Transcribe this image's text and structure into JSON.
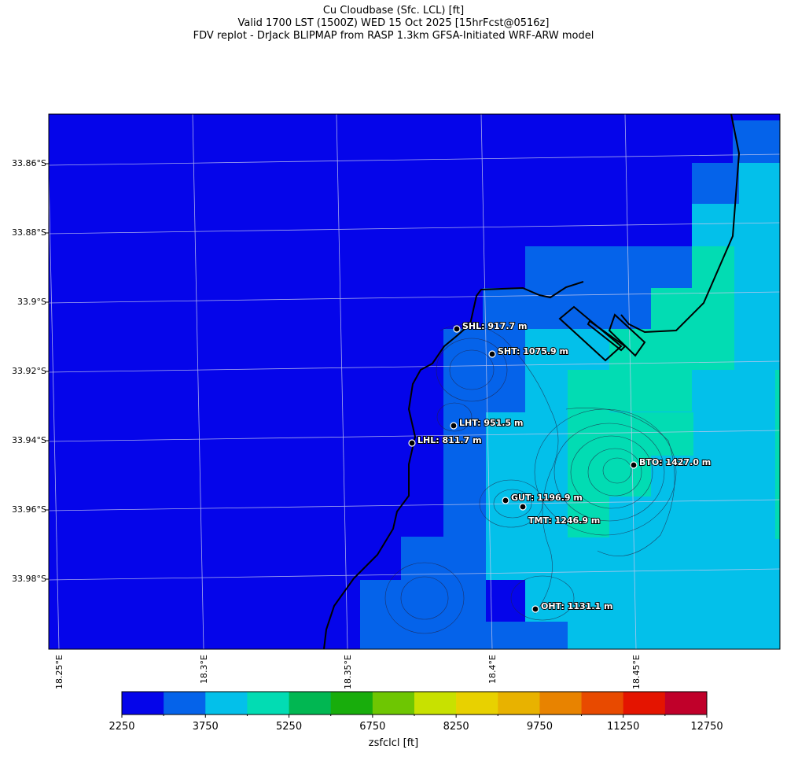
{
  "title": {
    "line1": "Cu Cloudbase (Sfc. LCL) [ft]",
    "line2": "Valid 1700 LST (1500Z) WED 15 Oct 2025 [15hrFcst@0516z]",
    "line3": "FDV replot - DrJack BLIPMAP from RASP 1.3km GFSA-Initiated WRF-ARW model"
  },
  "lat_labels": [
    "33.86°S",
    "33.88°S",
    "33.9°S",
    "33.92°S",
    "33.94°S",
    "33.96°S",
    "33.98°S"
  ],
  "lon_labels": [
    "18.25°E",
    "18.3°E",
    "18.35°E",
    "18.4°E",
    "18.45°E"
  ],
  "stations": [
    {
      "label": "SHL: 917.7 m"
    },
    {
      "label": "SHT: 1075.9 m"
    },
    {
      "label": "LHT: 951.5 m"
    },
    {
      "label": "LHL: 811.7 m"
    },
    {
      "label": "BTO: 1427.0 m"
    },
    {
      "label": "GUT: 1196.9 m"
    },
    {
      "label": "TMT: 1246.9 m"
    },
    {
      "label": "OHT: 1131.1 m"
    }
  ],
  "colorbar": {
    "label": "zsfclcl [ft]",
    "min": 2250,
    "max": 12750,
    "tick_labels": [
      "2250",
      "3750",
      "5250",
      "6750",
      "8250",
      "9750",
      "11250",
      "12750"
    ],
    "colors": [
      "#0505ea",
      "#0563ea",
      "#03c0ea",
      "#02dcb3",
      "#01b752",
      "#18ad0c",
      "#6ec602",
      "#c8e100",
      "#e8d100",
      "#e8b200",
      "#e88300",
      "#e84a00",
      "#e41400",
      "#c0002a"
    ]
  },
  "chart_data": {
    "type": "heatmap",
    "variable": "zsfclcl",
    "units": "ft",
    "value_range": [
      2250,
      12750
    ],
    "dominant_values_ft": [
      2625,
      3375,
      4125,
      4875
    ],
    "stations": [
      {
        "id": "SHL",
        "elevation_m": 917.7
      },
      {
        "id": "SHT",
        "elevation_m": 1075.9
      },
      {
        "id": "LHT",
        "elevation_m": 951.5
      },
      {
        "id": "LHL",
        "elevation_m": 811.7
      },
      {
        "id": "BTO",
        "elevation_m": 1427.0
      },
      {
        "id": "GUT",
        "elevation_m": 1196.9
      },
      {
        "id": "TMT",
        "elevation_m": 1246.9
      },
      {
        "id": "OHT",
        "elevation_m": 1131.1
      }
    ]
  }
}
